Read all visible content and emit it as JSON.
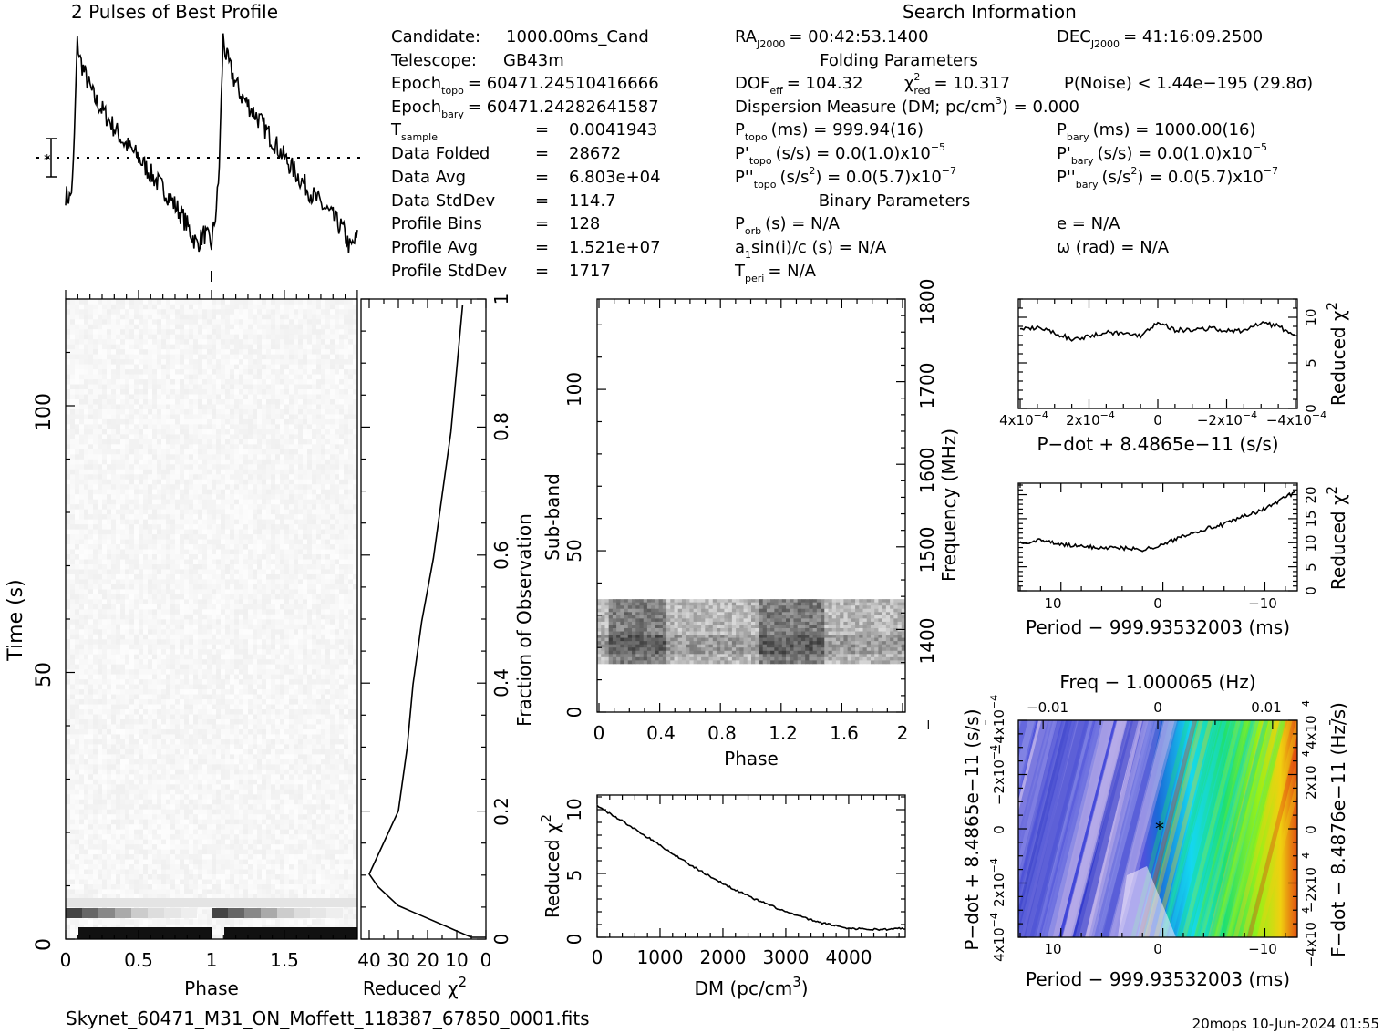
{
  "figure": {
    "profile_title": "2 Pulses of Best Profile",
    "search_title": "Search Information",
    "footer_file": "Skynet_60471_M31_ON_Moffett_118387_67850_0001.fits",
    "footer_stamp": "20mops 10-Jun-2024 01:55"
  },
  "info": {
    "candidate_label": "Candidate:",
    "candidate_value": "1000.00ms_Cand",
    "telescope_label": "Telescope:",
    "telescope_value": "GB43m",
    "epoch_topo_label": "Epoch",
    "epoch_topo_sub": "topo",
    "epoch_topo_value": "= 60471.24510416666",
    "epoch_bary_label": "Epoch",
    "epoch_bary_sub": "bary",
    "epoch_bary_value": "= 60471.24282641587",
    "tsample_label": "T",
    "tsample_sub": "sample",
    "tsample_value": "0.0041943",
    "data_folded_label": "Data Folded",
    "data_folded_value": "28672",
    "data_avg_label": "Data Avg",
    "data_avg_value": "6.803e+04",
    "data_std_label": "Data StdDev",
    "data_std_value": "114.7",
    "profile_bins_label": "Profile Bins",
    "profile_bins_value": "128",
    "profile_avg_label": "Profile Avg",
    "profile_avg_value": "1.521e+07",
    "profile_std_label": "Profile StdDev",
    "profile_std_value": "1717",
    "eq": "=",
    "ra_label": "RA",
    "ra_sub": "J2000",
    "ra_value": "= 00:42:53.1400",
    "dec_label": "DEC",
    "dec_sub": "J2000",
    "dec_value": "= 41:16:09.2500",
    "folding_header": "Folding Parameters",
    "dof_label": "DOF",
    "dof_sub": "eff",
    "dof_value": "= 104.32",
    "chi_label": "χ",
    "chi_sup": "2",
    "chi_sub": "red",
    "chi_value": "= 10.317",
    "pnoise": "P(Noise) < 1.44e−195   (29.8σ)",
    "dm_line_a": "Dispersion Measure (DM; pc/cm",
    "dm_line_sup": "3",
    "dm_line_b": ") = 0.000",
    "ptopo_label": "P",
    "ptopo_sub": "topo",
    "ptopo_value": "(ms) =  999.94(16)",
    "pbary_label": "P",
    "pbary_sub": "bary",
    "pbary_value": "(ms) =  1000.00(16)",
    "pdtopo_label": "P'",
    "pdtopo_sub": "topo",
    "pdtopo_value": "(s/s) = 0.0(1.0)x10",
    "pdbary_label": "P'",
    "pdbary_sub": "bary",
    "pdbary_value": "(s/s) = 0.0(1.0)x10",
    "pd_exp": "−5",
    "pddtopo_label": "P''",
    "pddtopo_sub": "topo",
    "pddtopo_value_a": "(s/s",
    "pddtopo_value_b": ") = 0.0(5.7)x10",
    "pddbary_label": "P''",
    "pddbary_sub": "bary",
    "pddbary_value_a": "(s/s",
    "pddbary_value_b": ") = 0.0(5.7)x10",
    "pdd_sq": "2",
    "pdd_exp": "−7",
    "binary_header": "Binary Parameters",
    "porb_label": "P",
    "porb_sub": "orb",
    "porb_value": "(s) = N/A",
    "a1_label": "a",
    "a1_sub": "1",
    "a1_value": "sin(i)/c (s) = N/A",
    "tperi_label": "T",
    "tperi_sub": "peri",
    "tperi_value": "= N/A",
    "e_value": "e = N/A",
    "omega_value": "ω (rad) = N/A"
  },
  "labels": {
    "time_axis": "Time (s)",
    "phase_axis": "Phase",
    "redchi_axis": "Reduced χ",
    "fraction_axis": "Fraction of Observation",
    "subband_axis": "Sub-band",
    "freq_axis": "Frequency (MHz)",
    "dm_axis_a": "DM (pc/cm",
    "dm_axis_b": ")",
    "pdot_axis": "P−dot + 8.4865e−11 (s/s)",
    "period_axis": "Period − 999.93532003 (ms)",
    "freq_top_axis": "Freq − 1.000065 (Hz)",
    "pdot_left_axis": "P−dot + 8.4865e−11 (s/s)",
    "fdot_right_axis": "F−dot − 8.4876e−11 (Hz/s)",
    "sup2": "2",
    "sup3": "3"
  },
  "ticks": {
    "time_phase_x": [
      "0",
      "0.5",
      "1",
      "1.5"
    ],
    "time_y": [
      "0",
      "50",
      "100"
    ],
    "redchi_x": [
      "40",
      "30",
      "20",
      "10",
      "0"
    ],
    "fraction_y": [
      "0",
      "0.2",
      "0.4",
      "0.6",
      "0.8",
      "1"
    ],
    "subband_x": [
      "0",
      "0.4",
      "0.8",
      "1.2",
      "1.6",
      "2"
    ],
    "subband_y": [
      "0",
      "50",
      "100"
    ],
    "freq_y": [
      "1400",
      "1500",
      "1600",
      "1700",
      "1800"
    ],
    "dm_x": [
      "0",
      "1000",
      "2000",
      "3000",
      "4000"
    ],
    "dm_y": [
      "0",
      "5",
      "10"
    ],
    "pdot_x": [
      "4x10",
      "2x10",
      "0",
      "−2x10",
      "−4x10"
    ],
    "pdot_x_exp": "−4",
    "pdot_y": [
      "0",
      "5",
      "10"
    ],
    "period_x": [
      "10",
      "0",
      "−10"
    ],
    "period_y": [
      "0",
      "5",
      "10",
      "15",
      "20"
    ],
    "freq_top": [
      "−0.01",
      "0",
      "0.01"
    ],
    "pp_left": [
      "4x10",
      "2x10",
      "0",
      "−2x10",
      "−4x10"
    ],
    "pp_right": [
      "−4x10",
      "−2x10",
      "0",
      "2x10",
      "4x10"
    ],
    "pp_period_x": [
      "10",
      "0",
      "−10"
    ]
  },
  "chart_data": [
    {
      "type": "line",
      "name": "profile",
      "title": "2 Pulses of Best Profile",
      "x": [
        0.0,
        0.03,
        0.05,
        0.08,
        0.1,
        0.15,
        0.2,
        0.3,
        0.4,
        0.5,
        0.6,
        0.7,
        0.8,
        0.9,
        0.95,
        1.0,
        1.03,
        1.05,
        1.08,
        1.1,
        1.15,
        1.2,
        1.3,
        1.4,
        1.5,
        1.6,
        1.7,
        1.8,
        1.9,
        1.95,
        2.0
      ],
      "y": [
        0.28,
        0.26,
        0.35,
        0.98,
        0.9,
        0.8,
        0.72,
        0.62,
        0.52,
        0.45,
        0.36,
        0.28,
        0.18,
        0.05,
        0.1,
        0.05,
        0.2,
        0.35,
        1.0,
        0.92,
        0.82,
        0.74,
        0.65,
        0.55,
        0.45,
        0.36,
        0.27,
        0.2,
        0.12,
        0.03,
        0.08
      ]
    },
    {
      "type": "heatmap",
      "name": "time-phase",
      "xlabel": "Phase",
      "ylabel": "Time (s)",
      "xlim": [
        0,
        2
      ],
      "ylim": [
        0,
        120
      ],
      "note_rows": "bright bands only in the first few seconds"
    },
    {
      "type": "line",
      "name": "reduced-chi2-vs-fraction",
      "xlabel": "Reduced χ2",
      "ylabel": "Fraction of Observation",
      "xlim": [
        40,
        0
      ],
      "ylim": [
        0,
        1
      ],
      "x": [
        0,
        5,
        10,
        15,
        20,
        25,
        30,
        37,
        40,
        35,
        30,
        27,
        25,
        22,
        18,
        15,
        12,
        10,
        8
      ],
      "y": [
        0.0,
        0.0,
        0.01,
        0.02,
        0.03,
        0.04,
        0.05,
        0.08,
        0.1,
        0.15,
        0.2,
        0.3,
        0.4,
        0.5,
        0.6,
        0.7,
        0.8,
        0.9,
        1.0
      ]
    },
    {
      "type": "heatmap",
      "name": "subbands",
      "xlabel": "Phase",
      "ylabel": "Sub-band",
      "xlim": [
        0,
        2
      ],
      "ylim": [
        0,
        128
      ],
      "active_subbands": [
        15,
        35
      ],
      "freq_range_mhz": [
        1300,
        1800
      ]
    },
    {
      "type": "line",
      "name": "dm-curve",
      "xlabel": "DM (pc/cm3)",
      "ylabel": "Reduced χ2",
      "xlim": [
        0,
        4900
      ],
      "ylim": [
        0,
        11
      ],
      "x": [
        0,
        500,
        1000,
        1500,
        2000,
        2500,
        3000,
        3500,
        4000,
        4500,
        4900
      ],
      "y": [
        10.3,
        8.8,
        7.2,
        5.6,
        4.2,
        3.0,
        2.0,
        1.2,
        0.7,
        0.6,
        0.7
      ]
    },
    {
      "type": "line",
      "name": "pdot-curve",
      "xlabel": "P−dot + 8.4865e−11 (s/s)",
      "ylabel": "Reduced χ2",
      "xlim": [
        0.0004,
        -0.0004
      ],
      "ylim": [
        0,
        12
      ],
      "x": [
        0.0004,
        0.00035,
        0.0003,
        0.00025,
        0.0002,
        0.00015,
        0.0001,
        5e-05,
        0.0,
        -5e-05,
        -0.0001,
        -0.00015,
        -0.0002,
        -0.00025,
        -0.0003,
        -0.00035,
        -0.0004
      ],
      "y": [
        8.6,
        8.9,
        8.3,
        7.6,
        7.9,
        8.4,
        8.2,
        8.0,
        9.5,
        8.6,
        8.6,
        8.8,
        8.5,
        8.5,
        9.4,
        9.0,
        8.0
      ]
    },
    {
      "type": "line",
      "name": "period-curve",
      "xlabel": "Period − 999.93532003 (ms)",
      "ylabel": "Reduced χ2",
      "xlim": [
        14,
        -13
      ],
      "ylim": [
        0,
        22
      ],
      "x": [
        14,
        12,
        10,
        8,
        6,
        4,
        2,
        0,
        -2,
        -4,
        -6,
        -8,
        -10,
        -12,
        -13
      ],
      "y": [
        10,
        10.5,
        9.6,
        9.2,
        9.0,
        8.9,
        8.6,
        9.5,
        11.5,
        12.8,
        13.8,
        15.5,
        17.0,
        19.5,
        20.5
      ]
    },
    {
      "type": "heatmap",
      "name": "p-pdot-plane",
      "xlabel": "Period − 999.93532003 (ms)",
      "ylabel": "P−dot + 8.4865e−11 (s/s)",
      "xlim": [
        14,
        -13
      ],
      "ylim": [
        0.0004,
        -0.0004
      ],
      "best": [
        0,
        0
      ],
      "colors": [
        "#3a3fd6",
        "#6f72e0",
        "#d8c8ee",
        "#1a7ad8",
        "#14d8f0",
        "#20e070",
        "#98f018",
        "#f0d010",
        "#e03010"
      ]
    }
  ]
}
